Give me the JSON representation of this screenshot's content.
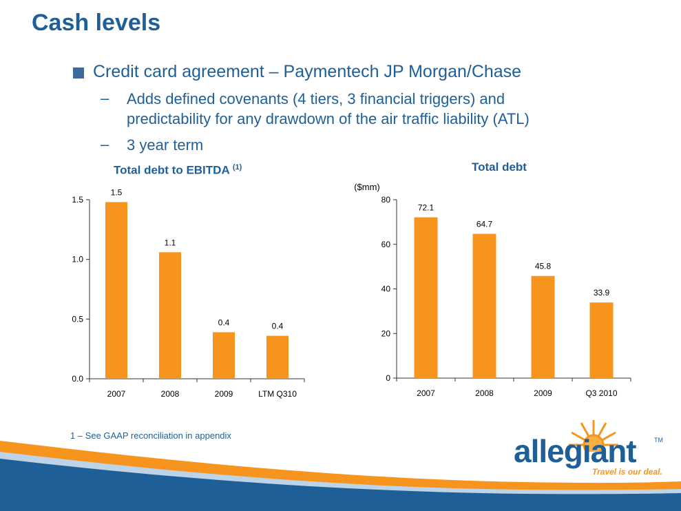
{
  "slide": {
    "title": "Cash levels",
    "bullet": "Credit card agreement – Paymentech JP Morgan/Chase",
    "sub1_line1": "Adds defined covenants (4 tiers, 3 financial triggers) and",
    "sub1_line2": "predictability for any drawdown of the air traffic liability (ATL)",
    "sub2": "3 year term",
    "dash": "–",
    "footnote": "1 – See GAAP reconciliation in appendix"
  },
  "logo": {
    "name": "allegiant",
    "tm": "TM",
    "tagline": "Travel is our deal."
  },
  "colors": {
    "bar": "#f7941d",
    "title": "#1f5f97",
    "band_orange": "#f7941d",
    "band_blue": "#1f5f97"
  },
  "chart_data": [
    {
      "type": "bar",
      "title": "Total debt to EBITDA",
      "title_sup": "(1)",
      "ylabel": "",
      "categories": [
        "2007",
        "2008",
        "2009",
        "LTM Q310"
      ],
      "values": [
        1.48,
        1.06,
        0.39,
        0.36
      ],
      "data_labels": [
        "1.5",
        "1.1",
        "0.4",
        "0.4"
      ],
      "ylim": [
        0,
        1.5
      ],
      "yticks": [
        "0.0",
        "0.5",
        "1.0",
        "1.5"
      ],
      "grid": false,
      "legend": "none"
    },
    {
      "type": "bar",
      "title": "Total debt",
      "ylabel": "($mm)",
      "categories": [
        "2007",
        "2008",
        "2009",
        "Q3 2010"
      ],
      "values": [
        72.1,
        64.7,
        45.8,
        33.9
      ],
      "data_labels": [
        "72.1",
        "64.7",
        "45.8",
        "33.9"
      ],
      "ylim": [
        0,
        80
      ],
      "yticks": [
        "0",
        "20",
        "40",
        "60",
        "80"
      ],
      "grid": false,
      "legend": "none"
    }
  ]
}
